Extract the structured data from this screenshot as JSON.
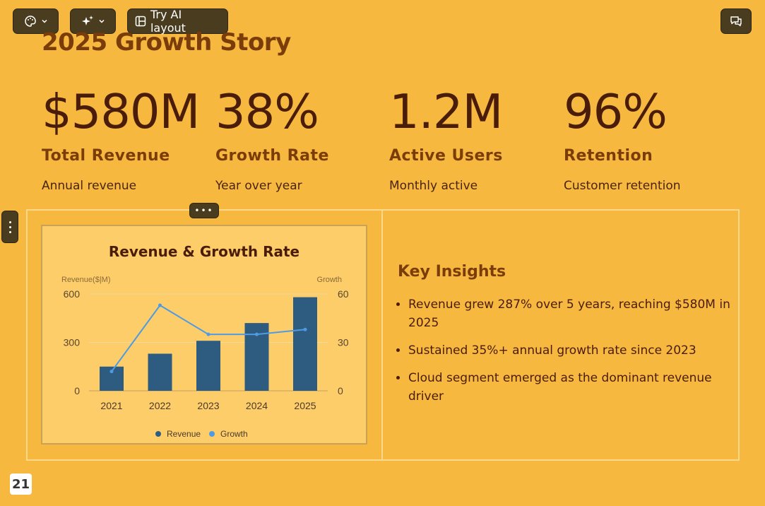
{
  "toolbar": {
    "layout_label": "Try AI layout"
  },
  "slide": {
    "title": "2025 Growth Story",
    "stats": [
      {
        "value": "$580M",
        "label": "Total Revenue",
        "desc": "Annual revenue"
      },
      {
        "value": "38%",
        "label": "Growth Rate",
        "desc": "Year over year"
      },
      {
        "value": "1.2M",
        "label": "Active Users",
        "desc": "Monthly active"
      },
      {
        "value": "96%",
        "label": "Retention",
        "desc": "Customer retention"
      }
    ],
    "insights_title": "Key Insights",
    "insights": [
      "Revenue grew 287% over 5 years, reaching $580M in 2025",
      "Sustained 35%+ annual growth rate since 2023",
      "Cloud segment emerged as the dominant revenue driver"
    ]
  },
  "page_number": "21",
  "chart_data": {
    "type": "bar",
    "title": "Revenue & Growth Rate",
    "categories": [
      "2021",
      "2022",
      "2023",
      "2024",
      "2025"
    ],
    "ylabel_left": "Revenue($|M)",
    "ylabel_right": "Growth",
    "ylim_left": [
      0,
      600
    ],
    "ylim_right": [
      0,
      60
    ],
    "yticks_left": [
      0,
      300,
      600
    ],
    "yticks_right": [
      0,
      30,
      60
    ],
    "series": [
      {
        "name": "Revenue",
        "type": "bar",
        "axis": "left",
        "color": "#2e5c80",
        "values": [
          150,
          230,
          310,
          420,
          580
        ]
      },
      {
        "name": "Growth",
        "type": "line",
        "axis": "right",
        "color": "#4f9be3",
        "values": [
          12,
          53,
          35,
          35,
          38
        ]
      }
    ],
    "legend": "bottom"
  }
}
